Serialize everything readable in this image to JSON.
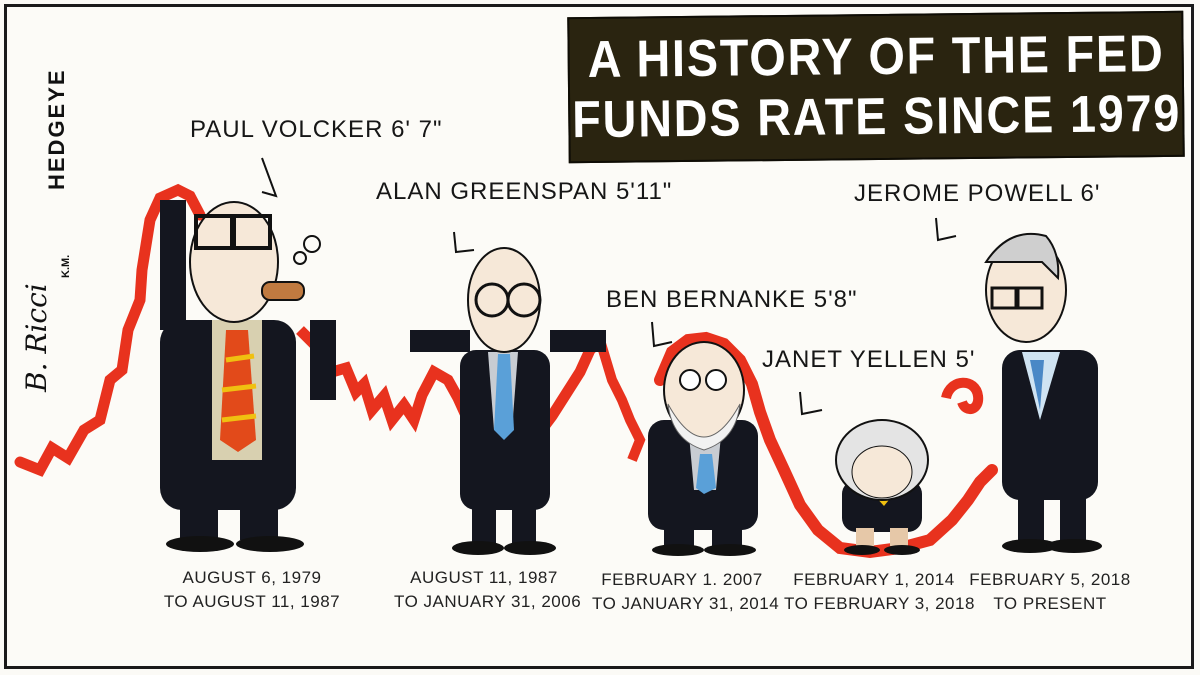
{
  "title": {
    "line1": "A HISTORY OF THE FED",
    "line2": "FUNDS RATE SINCE 1979"
  },
  "brand": {
    "name": "HEDGEYE",
    "signature": "B. Ricci",
    "initials": "K.M."
  },
  "chairs": [
    {
      "label": "PAUL VOLCKER 6' 7\"",
      "dates_line1": "AUGUST 6, 1979",
      "dates_line2": "TO AUGUST 11, 1987"
    },
    {
      "label": "ALAN GREENSPAN 5'11\"",
      "dates_line1": "AUGUST 11, 1987",
      "dates_line2": "TO JANUARY 31, 2006"
    },
    {
      "label": "BEN BERNANKE 5'8\"",
      "dates_line1": "FEBRUARY 1. 2007",
      "dates_line2": "TO JANUARY 31, 2014"
    },
    {
      "label": "JANET YELLEN 5'",
      "dates_line1": "FEBRUARY 1, 2014",
      "dates_line2": "TO FEBRUARY 3, 2018"
    },
    {
      "label": "JEROME POWELL 6'",
      "dates_line1": "FEBRUARY 5, 2018",
      "dates_line2": "TO PRESENT"
    }
  ],
  "colors": {
    "ribbon": "#e8321e",
    "suit": "#14161f",
    "title_bg": "#2a2410"
  }
}
